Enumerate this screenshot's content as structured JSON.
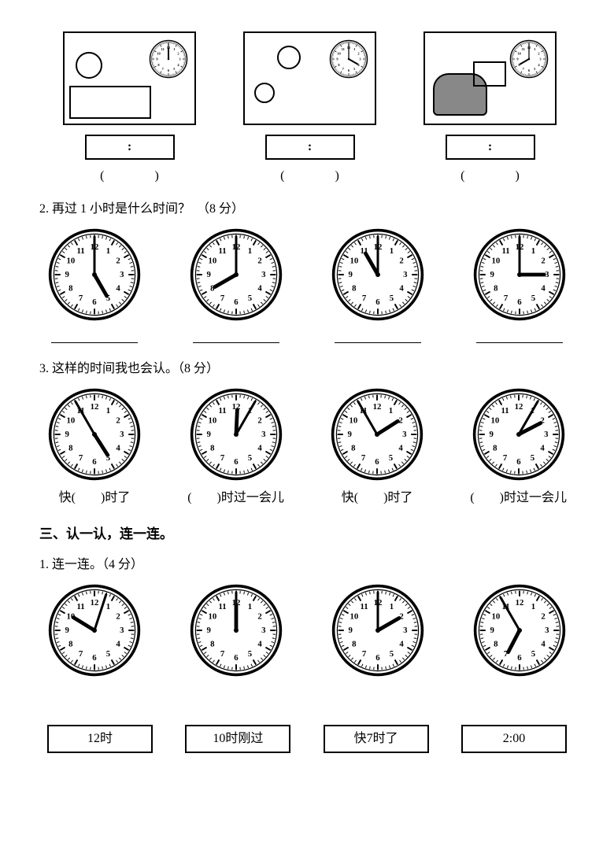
{
  "panels": {
    "colon": ":",
    "paren": "(　　　　)",
    "mini_clocks": [
      {
        "hour": 12,
        "minute": 0
      },
      {
        "hour": 4,
        "minute": 0
      },
      {
        "hour": 8,
        "minute": 0
      }
    ]
  },
  "q2": {
    "text": "2. 再过 1 小时是什么时间？　（8 分）",
    "clocks": [
      {
        "hour": 5,
        "minute": 0
      },
      {
        "hour": 8,
        "minute": 0
      },
      {
        "hour": 11,
        "minute": 0
      },
      {
        "hour": 3,
        "minute": 0
      }
    ]
  },
  "q3": {
    "text": "3. 这样的时间我也会认。（8 分）",
    "clocks": [
      {
        "hour": 4,
        "minute": 55,
        "caption": "快(　　)时了"
      },
      {
        "hour": 12,
        "minute": 5,
        "caption": "(　　)时过一会儿"
      },
      {
        "hour": 1,
        "minute": 55,
        "caption": "快(　　)时了"
      },
      {
        "hour": 2,
        "minute": 5,
        "caption": "(　　)时过一会儿"
      }
    ]
  },
  "section3_title": "三、认一认，连一连。",
  "q3_1": {
    "text": "1. 连一连。（4 分）",
    "clocks": [
      {
        "hour": 10,
        "minute": 3
      },
      {
        "hour": 12,
        "minute": 0
      },
      {
        "hour": 2,
        "minute": 0
      },
      {
        "hour": 6,
        "minute": 55
      }
    ],
    "labels": [
      "12时",
      "10时刚过",
      "快7时了",
      "2:00"
    ]
  },
  "clock_style": {
    "outer_stroke": "#000",
    "outer_width": 3,
    "face_fill": "#ffffff",
    "tick_stroke": "#000",
    "num_fontsize": 9,
    "num_fontfamily": "serif",
    "hour_hand_len": 26,
    "hour_hand_width": 4,
    "min_hand_len": 40,
    "min_hand_width": 2.5,
    "center_r": 2.5
  }
}
